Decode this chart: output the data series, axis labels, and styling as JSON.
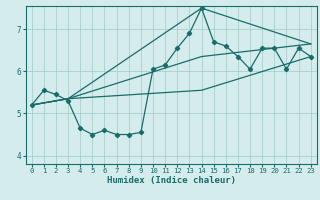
{
  "xlabel": "Humidex (Indice chaleur)",
  "bg_color": "#d4edec",
  "grid_color": "#a8d0ce",
  "line_color": "#1a6b6b",
  "xlim": [
    -0.5,
    23.5
  ],
  "ylim": [
    3.8,
    7.55
  ],
  "yticks": [
    4,
    5,
    6,
    7
  ],
  "xticks": [
    0,
    1,
    2,
    3,
    4,
    5,
    6,
    7,
    8,
    9,
    10,
    11,
    12,
    13,
    14,
    15,
    16,
    17,
    18,
    19,
    20,
    21,
    22,
    23
  ],
  "series1_x": [
    0,
    1,
    2,
    3,
    4,
    5,
    6,
    7,
    8,
    9,
    10,
    11,
    12,
    13,
    14,
    15,
    16,
    17,
    18,
    19,
    20,
    21,
    22,
    23
  ],
  "series1_y": [
    5.2,
    5.55,
    5.45,
    5.3,
    4.65,
    4.5,
    4.6,
    4.5,
    4.5,
    4.55,
    6.05,
    6.15,
    6.55,
    6.9,
    7.5,
    6.7,
    6.6,
    6.35,
    6.05,
    6.55,
    6.55,
    6.05,
    6.55,
    6.35
  ],
  "line2_x": [
    0,
    3,
    14,
    23
  ],
  "line2_y": [
    5.2,
    5.35,
    7.5,
    6.65
  ],
  "line3_x": [
    0,
    3,
    14,
    23
  ],
  "line3_y": [
    5.2,
    5.35,
    5.55,
    6.35
  ],
  "line4_x": [
    0,
    3,
    14,
    23
  ],
  "line4_y": [
    5.2,
    5.35,
    6.35,
    6.65
  ]
}
